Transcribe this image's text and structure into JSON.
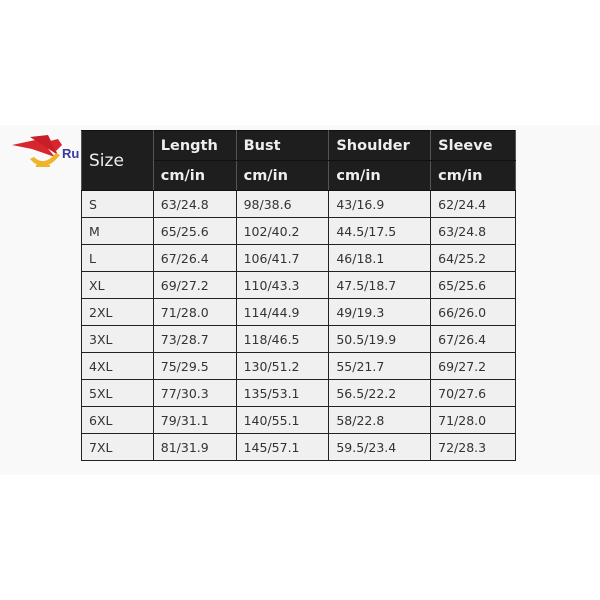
{
  "logo": {
    "text": "Ru",
    "colors": {
      "red": "#d8262e",
      "yellow": "#f0b429"
    }
  },
  "table": {
    "size_header": "Size",
    "columns": [
      {
        "label": "Length",
        "unit": "cm/in"
      },
      {
        "label": "Bust",
        "unit": "cm/in"
      },
      {
        "label": "Shoulder",
        "unit": "cm/in"
      },
      {
        "label": "Sleeve",
        "unit": "cm/in"
      }
    ],
    "rows": [
      [
        "S",
        "63/24.8",
        "98/38.6",
        "43/16.9",
        "62/24.4"
      ],
      [
        "M",
        "65/25.6",
        "102/40.2",
        "44.5/17.5",
        "63/24.8"
      ],
      [
        "L",
        "67/26.4",
        "106/41.7",
        "46/18.1",
        "64/25.2"
      ],
      [
        "XL",
        "69/27.2",
        "110/43.3",
        "47.5/18.7",
        "65/25.6"
      ],
      [
        "2XL",
        "71/28.0",
        "114/44.9",
        "49/19.3",
        "66/26.0"
      ],
      [
        "3XL",
        "73/28.7",
        "118/46.5",
        "50.5/19.9",
        "67/26.4"
      ],
      [
        "4XL",
        "75/29.5",
        "130/51.2",
        "55/21.7",
        "69/27.2"
      ],
      [
        "5XL",
        "77/30.3",
        "135/53.1",
        "56.5/22.2",
        "70/27.6"
      ],
      [
        "6XL",
        "79/31.1",
        "140/55.1",
        "58/22.8",
        "71/28.0"
      ],
      [
        "7XL",
        "81/31.9",
        "145/57.1",
        "59.5/23.4",
        "72/28.3"
      ]
    ]
  }
}
